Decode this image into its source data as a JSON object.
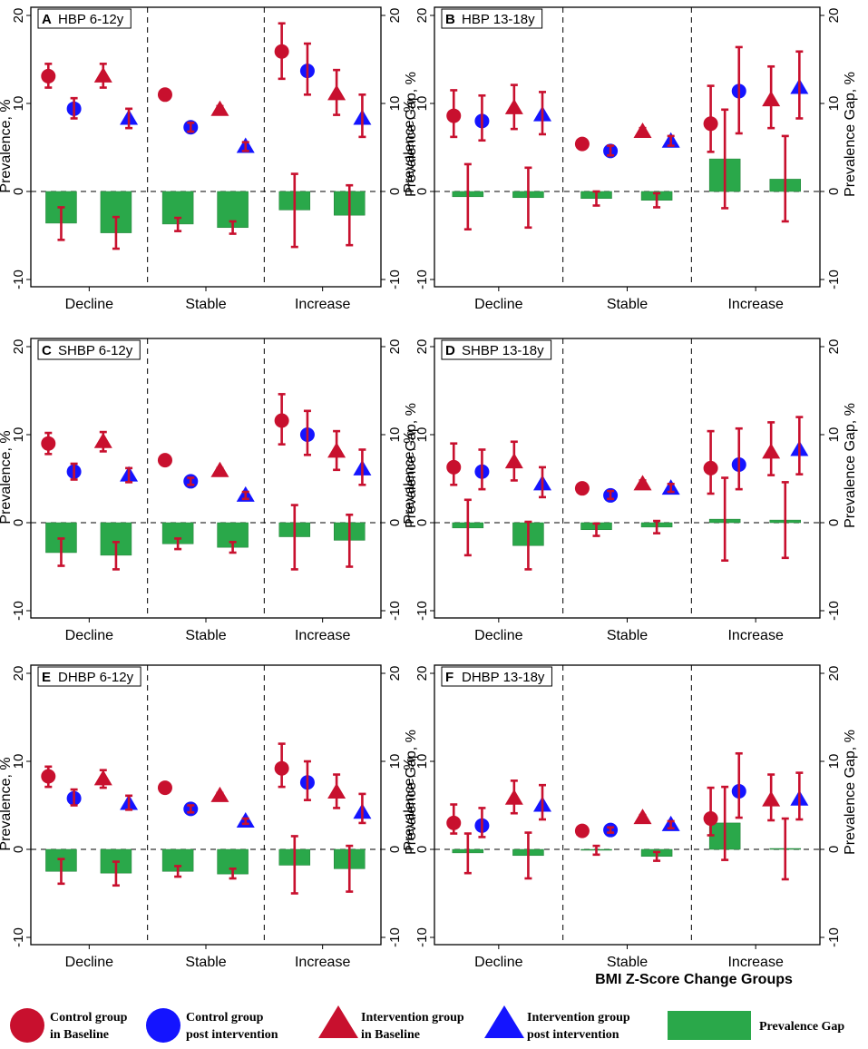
{
  "colors": {
    "control": "#c8102e",
    "intervention_post": "#1414ff",
    "gap": "#2aa84a",
    "gap_edge": "#1e7e34",
    "errorbar": "#c8102e"
  },
  "x_axis_title": "BMI Z-Score Change Groups",
  "legend": [
    {
      "marker": "circle",
      "color": "control",
      "line1": "Control group",
      "line2": "in Baseline"
    },
    {
      "marker": "circle",
      "color": "intervention_post",
      "line1": "Control group",
      "line2": "post intervention"
    },
    {
      "marker": "triangle",
      "color": "control",
      "line1": "Intervention group",
      "line2": "in Baseline"
    },
    {
      "marker": "triangle",
      "color": "intervention_post",
      "line1": "Intervention group",
      "line2": "post intervention"
    },
    {
      "marker": "bar",
      "color": "gap",
      "line1": "Prevalence Gap",
      "line2": ""
    }
  ],
  "chart_data": [
    {
      "letter": "A",
      "title": "HBP 6-12y",
      "type": "bar+scatter",
      "ylabel_left": "Prevalence, %",
      "ylabel_right": "Prevalence Gap, %",
      "ylim": [
        -11,
        21
      ],
      "yticks": [
        -10,
        0,
        10,
        20
      ],
      "categories": [
        "Decline",
        "Stable",
        "Increase"
      ],
      "points": [
        [
          {
            "v": 13.1,
            "lo": 11.8,
            "hi": 14.5
          },
          {
            "v": 9.4,
            "lo": 8.3,
            "hi": 10.6
          },
          {
            "v": 13.1,
            "lo": 11.8,
            "hi": 14.5
          },
          {
            "v": 8.3,
            "lo": 7.2,
            "hi": 9.4
          }
        ],
        [
          {
            "v": 11.0,
            "lo": 10.6,
            "hi": 11.4
          },
          {
            "v": 7.3,
            "lo": 6.8,
            "hi": 7.8
          },
          {
            "v": 9.3,
            "lo": 8.9,
            "hi": 9.7
          },
          {
            "v": 5.1,
            "lo": 4.6,
            "hi": 5.6
          }
        ],
        [
          {
            "v": 15.9,
            "lo": 12.8,
            "hi": 19.1
          },
          {
            "v": 13.7,
            "lo": 11.0,
            "hi": 16.8
          },
          {
            "v": 11.1,
            "lo": 8.7,
            "hi": 13.8
          },
          {
            "v": 8.3,
            "lo": 6.2,
            "hi": 11.0
          }
        ]
      ],
      "gaps": [
        [
          {
            "v": -3.6,
            "lo": -5.5,
            "hi": -1.8
          },
          {
            "v": -4.7,
            "lo": -6.5,
            "hi": -2.9
          }
        ],
        [
          {
            "v": -3.7,
            "lo": -4.5,
            "hi": -3.0
          },
          {
            "v": -4.1,
            "lo": -4.8,
            "hi": -3.4
          }
        ],
        [
          {
            "v": -2.1,
            "lo": -6.3,
            "hi": 2.0
          },
          {
            "v": -2.7,
            "lo": -6.1,
            "hi": 0.7
          }
        ]
      ]
    },
    {
      "letter": "B",
      "title": "HBP 13-18y",
      "type": "bar+scatter",
      "ylabel_left": "Prevalence, %",
      "ylabel_right": "Prevalence Gap, %",
      "ylim": [
        -11,
        21
      ],
      "yticks": [
        -10,
        0,
        10,
        20
      ],
      "categories": [
        "Decline",
        "Stable",
        "Increase"
      ],
      "points": [
        [
          {
            "v": 8.6,
            "lo": 6.2,
            "hi": 11.5
          },
          {
            "v": 8.0,
            "lo": 5.8,
            "hi": 10.9
          },
          {
            "v": 9.5,
            "lo": 7.1,
            "hi": 12.1
          },
          {
            "v": 8.7,
            "lo": 6.5,
            "hi": 11.3
          }
        ],
        [
          {
            "v": 5.4,
            "lo": 5.0,
            "hi": 5.8
          },
          {
            "v": 4.6,
            "lo": 4.1,
            "hi": 5.2
          },
          {
            "v": 6.8,
            "lo": 6.4,
            "hi": 7.2
          },
          {
            "v": 5.7,
            "lo": 5.2,
            "hi": 6.3
          }
        ],
        [
          {
            "v": 7.7,
            "lo": 4.5,
            "hi": 12.0
          },
          {
            "v": 11.4,
            "lo": 6.6,
            "hi": 16.4
          },
          {
            "v": 10.4,
            "lo": 7.2,
            "hi": 14.2
          },
          {
            "v": 11.8,
            "lo": 8.3,
            "hi": 15.9
          }
        ]
      ],
      "gaps": [
        [
          {
            "v": -0.6,
            "lo": -4.3,
            "hi": 3.1
          },
          {
            "v": -0.7,
            "lo": -4.1,
            "hi": 2.7
          }
        ],
        [
          {
            "v": -0.8,
            "lo": -1.6,
            "hi": 0.0
          },
          {
            "v": -1.0,
            "lo": -1.8,
            "hi": -0.2
          }
        ],
        [
          {
            "v": 3.7,
            "lo": -1.9,
            "hi": 9.3
          },
          {
            "v": 1.4,
            "lo": -3.4,
            "hi": 6.3
          }
        ]
      ]
    },
    {
      "letter": "C",
      "title": "SHBP 6-12y",
      "type": "bar+scatter",
      "ylabel_left": "Prevalence, %",
      "ylabel_right": "Prevalence Gap, %",
      "ylim": [
        -11,
        21
      ],
      "yticks": [
        -10,
        0,
        10,
        20
      ],
      "categories": [
        "Decline",
        "Stable",
        "Increase"
      ],
      "points": [
        [
          {
            "v": 9.0,
            "lo": 7.8,
            "hi": 10.2
          },
          {
            "v": 5.8,
            "lo": 4.9,
            "hi": 6.7
          },
          {
            "v": 9.2,
            "lo": 8.1,
            "hi": 10.3
          },
          {
            "v": 5.4,
            "lo": 4.6,
            "hi": 6.2
          }
        ],
        [
          {
            "v": 7.1,
            "lo": 6.8,
            "hi": 7.4
          },
          {
            "v": 4.7,
            "lo": 4.3,
            "hi": 5.1
          },
          {
            "v": 5.9,
            "lo": 5.6,
            "hi": 6.2
          },
          {
            "v": 3.1,
            "lo": 2.7,
            "hi": 3.5
          }
        ],
        [
          {
            "v": 11.6,
            "lo": 8.9,
            "hi": 14.6
          },
          {
            "v": 10.0,
            "lo": 7.7,
            "hi": 12.7
          },
          {
            "v": 8.1,
            "lo": 6.0,
            "hi": 10.4
          },
          {
            "v": 6.1,
            "lo": 4.3,
            "hi": 8.3
          }
        ]
      ],
      "gaps": [
        [
          {
            "v": -3.4,
            "lo": -4.9,
            "hi": -1.8
          },
          {
            "v": -3.7,
            "lo": -5.3,
            "hi": -2.2
          }
        ],
        [
          {
            "v": -2.4,
            "lo": -3.0,
            "hi": -1.8
          },
          {
            "v": -2.8,
            "lo": -3.4,
            "hi": -2.2
          }
        ],
        [
          {
            "v": -1.6,
            "lo": -5.3,
            "hi": 2.0
          },
          {
            "v": -2.0,
            "lo": -5.0,
            "hi": 0.9
          }
        ]
      ]
    },
    {
      "letter": "D",
      "title": "SHBP 13-18y",
      "type": "bar+scatter",
      "ylabel_left": "Prevalence, %",
      "ylabel_right": "Prevalence Gap, %",
      "ylim": [
        -11,
        21
      ],
      "yticks": [
        -10,
        0,
        10,
        20
      ],
      "categories": [
        "Decline",
        "Stable",
        "Increase"
      ],
      "points": [
        [
          {
            "v": 6.3,
            "lo": 4.3,
            "hi": 9.0
          },
          {
            "v": 5.8,
            "lo": 3.8,
            "hi": 8.3
          },
          {
            "v": 6.9,
            "lo": 4.8,
            "hi": 9.2
          },
          {
            "v": 4.4,
            "lo": 2.9,
            "hi": 6.3
          }
        ],
        [
          {
            "v": 3.9,
            "lo": 3.5,
            "hi": 4.3
          },
          {
            "v": 3.1,
            "lo": 2.7,
            "hi": 3.6
          },
          {
            "v": 4.4,
            "lo": 4.0,
            "hi": 4.8
          },
          {
            "v": 3.9,
            "lo": 3.5,
            "hi": 4.4
          }
        ],
        [
          {
            "v": 6.2,
            "lo": 3.3,
            "hi": 10.4
          },
          {
            "v": 6.6,
            "lo": 3.8,
            "hi": 10.7
          },
          {
            "v": 8.0,
            "lo": 5.4,
            "hi": 11.4
          },
          {
            "v": 8.3,
            "lo": 5.5,
            "hi": 12.0
          }
        ]
      ],
      "gaps": [
        [
          {
            "v": -0.6,
            "lo": -3.7,
            "hi": 2.6
          },
          {
            "v": -2.6,
            "lo": -5.3,
            "hi": 0.1
          }
        ],
        [
          {
            "v": -0.8,
            "lo": -1.5,
            "hi": -0.1
          },
          {
            "v": -0.5,
            "lo": -1.2,
            "hi": 0.2
          }
        ],
        [
          {
            "v": 0.4,
            "lo": -4.3,
            "hi": 5.1
          },
          {
            "v": 0.3,
            "lo": -4.0,
            "hi": 4.6
          }
        ]
      ]
    },
    {
      "letter": "E",
      "title": "DHBP 6-12y",
      "type": "bar+scatter",
      "ylabel_left": "Prevalence, %",
      "ylabel_right": "Prevalence Gap, %",
      "ylim": [
        -11,
        21
      ],
      "yticks": [
        -10,
        0,
        10,
        20
      ],
      "categories": [
        "Decline",
        "Stable",
        "Increase"
      ],
      "points": [
        [
          {
            "v": 8.3,
            "lo": 7.1,
            "hi": 9.4
          },
          {
            "v": 5.8,
            "lo": 5.0,
            "hi": 6.8
          },
          {
            "v": 8.0,
            "lo": 7.0,
            "hi": 9.0
          },
          {
            "v": 5.2,
            "lo": 4.5,
            "hi": 6.1
          }
        ],
        [
          {
            "v": 7.0,
            "lo": 6.6,
            "hi": 7.3
          },
          {
            "v": 4.6,
            "lo": 4.2,
            "hi": 5.0
          },
          {
            "v": 6.1,
            "lo": 5.8,
            "hi": 6.4
          },
          {
            "v": 3.2,
            "lo": 2.9,
            "hi": 3.5
          }
        ],
        [
          {
            "v": 9.2,
            "lo": 7.1,
            "hi": 12.0
          },
          {
            "v": 7.6,
            "lo": 5.6,
            "hi": 10.0
          },
          {
            "v": 6.5,
            "lo": 4.7,
            "hi": 8.5
          },
          {
            "v": 4.2,
            "lo": 3.0,
            "hi": 6.3
          }
        ]
      ],
      "gaps": [
        [
          {
            "v": -2.5,
            "lo": -3.9,
            "hi": -1.1
          },
          {
            "v": -2.7,
            "lo": -4.1,
            "hi": -1.4
          }
        ],
        [
          {
            "v": -2.5,
            "lo": -3.1,
            "hi": -1.9
          },
          {
            "v": -2.8,
            "lo": -3.3,
            "hi": -2.2
          }
        ],
        [
          {
            "v": -1.8,
            "lo": -5.0,
            "hi": 1.5
          },
          {
            "v": -2.2,
            "lo": -4.8,
            "hi": 0.4
          }
        ]
      ]
    },
    {
      "letter": "F",
      "title": "DHBP 13-18y",
      "type": "bar+scatter",
      "ylabel_left": "Prevalence, %",
      "ylabel_right": "Prevalence Gap, %",
      "ylim": [
        -11,
        21
      ],
      "yticks": [
        -10,
        0,
        10,
        20
      ],
      "categories": [
        "Decline",
        "Stable",
        "Increase"
      ],
      "points": [
        [
          {
            "v": 3.0,
            "lo": 1.8,
            "hi": 5.1
          },
          {
            "v": 2.7,
            "lo": 1.4,
            "hi": 4.7
          },
          {
            "v": 5.8,
            "lo": 4.1,
            "hi": 7.8
          },
          {
            "v": 5.0,
            "lo": 3.4,
            "hi": 7.3
          }
        ],
        [
          {
            "v": 2.1,
            "lo": 1.9,
            "hi": 2.4
          },
          {
            "v": 2.2,
            "lo": 1.9,
            "hi": 2.5
          },
          {
            "v": 3.6,
            "lo": 3.3,
            "hi": 3.9
          },
          {
            "v": 2.8,
            "lo": 2.4,
            "hi": 3.2
          }
        ],
        [
          {
            "v": 3.5,
            "lo": 1.6,
            "hi": 7.0
          },
          {
            "v": 6.6,
            "lo": 3.6,
            "hi": 10.9
          },
          {
            "v": 5.6,
            "lo": 3.3,
            "hi": 8.5
          },
          {
            "v": 5.7,
            "lo": 3.4,
            "hi": 8.7
          }
        ]
      ],
      "gaps": [
        [
          {
            "v": -0.4,
            "lo": -2.7,
            "hi": 1.8
          },
          {
            "v": -0.7,
            "lo": -3.3,
            "hi": 1.9
          }
        ],
        [
          {
            "v": -0.1,
            "lo": -0.6,
            "hi": 0.4
          },
          {
            "v": -0.8,
            "lo": -1.3,
            "hi": -0.3
          }
        ],
        [
          {
            "v": 3.0,
            "lo": -1.2,
            "hi": 7.1
          },
          {
            "v": 0.1,
            "lo": -3.4,
            "hi": 3.5
          }
        ]
      ]
    }
  ]
}
